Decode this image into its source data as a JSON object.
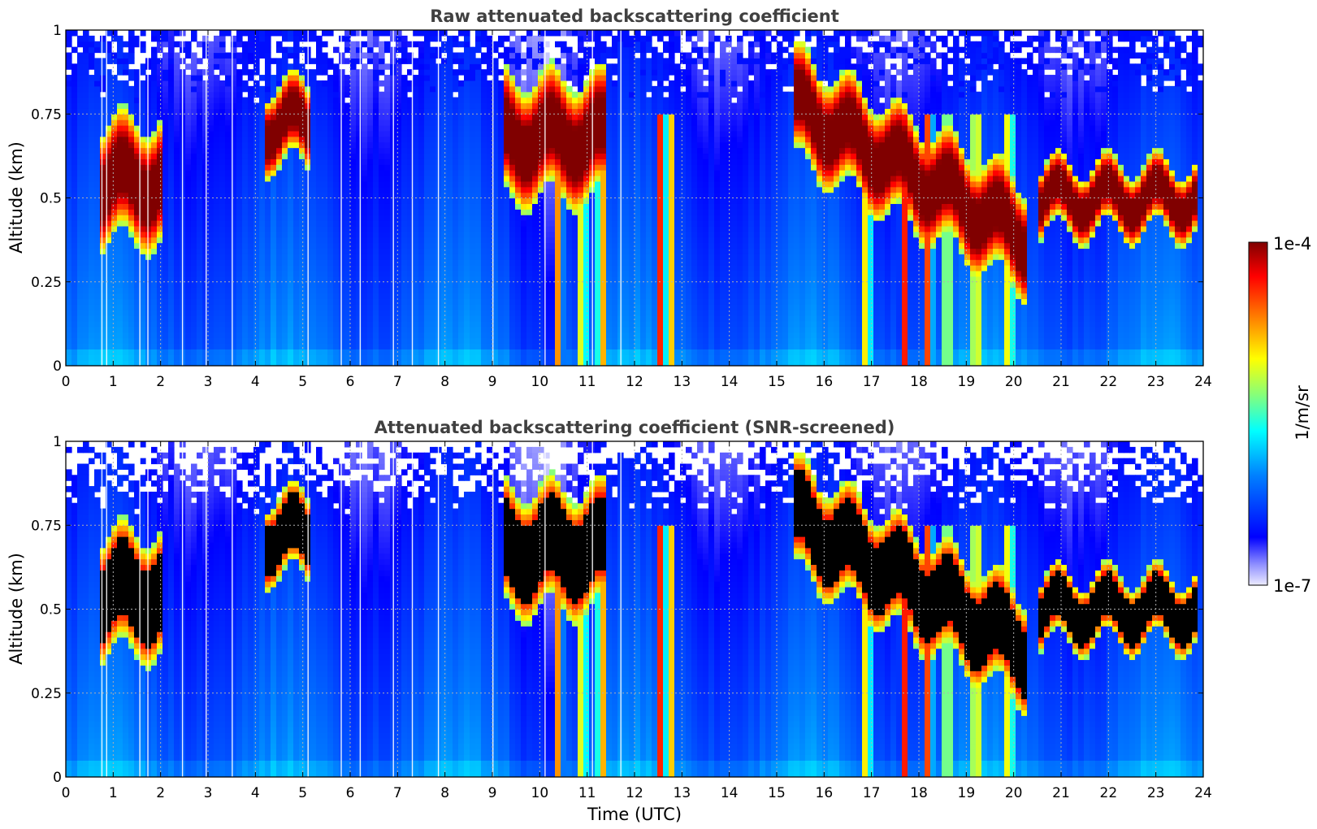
{
  "chart_data": [
    {
      "type": "heatmap",
      "title": "Raw attenuated backscattering coefficient",
      "xlabel": "",
      "ylabel": "Altitude (km)",
      "xlim": [
        0,
        24
      ],
      "ylim": [
        0,
        1
      ],
      "x_ticks": [
        "0",
        "1",
        "2",
        "3",
        "4",
        "5",
        "6",
        "7",
        "8",
        "9",
        "10",
        "11",
        "12",
        "13",
        "14",
        "15",
        "16",
        "17",
        "18",
        "19",
        "20",
        "21",
        "22",
        "23",
        "24"
      ],
      "y_ticks": [
        "0",
        "0.25",
        "0.5",
        "0.75",
        "1"
      ],
      "grid": true,
      "features": {
        "cloud_layers": [
          {
            "t0": 0.7,
            "t1": 2.0,
            "alt": 0.55,
            "thick": 0.18
          },
          {
            "t0": 4.2,
            "t1": 5.2,
            "alt": 0.72,
            "thick": 0.12
          },
          {
            "t0": 9.3,
            "t1": 11.4,
            "alt": 0.68,
            "thick": 0.18
          },
          {
            "t0": 15.3,
            "t1": 20.3,
            "alt": 0.5,
            "thick": 0.16
          },
          {
            "t0": 20.5,
            "t1": 23.9,
            "alt": 0.5,
            "thick": 0.1
          }
        ],
        "precip_columns": [
          10.4,
          10.9,
          11.3,
          12.55,
          12.75,
          16.9,
          17.7,
          18.2,
          18.6,
          19.2,
          19.9
        ],
        "surface_layer_top_km": 0.25
      }
    },
    {
      "type": "heatmap",
      "title": "Attenuated backscattering coefficient (SNR-screened)",
      "xlabel": "Time (UTC)",
      "ylabel": "Altitude (km)",
      "xlim": [
        0,
        24
      ],
      "ylim": [
        0,
        1
      ],
      "x_ticks": [
        "0",
        "1",
        "2",
        "3",
        "4",
        "5",
        "6",
        "7",
        "8",
        "9",
        "10",
        "11",
        "12",
        "13",
        "14",
        "15",
        "16",
        "17",
        "18",
        "19",
        "20",
        "21",
        "22",
        "23",
        "24"
      ],
      "y_ticks": [
        "0",
        "0.25",
        "0.5",
        "0.75",
        "1"
      ],
      "grid": true,
      "screened": true
    }
  ],
  "colorbar": {
    "label": "1/m/sr",
    "max_label": "1e-4",
    "min_label": "1e-7",
    "colormap": "jet",
    "colors": [
      "#ecebff",
      "#9090ff",
      "#0000ff",
      "#0080ff",
      "#00ffff",
      "#80ff80",
      "#ffff00",
      "#ff8000",
      "#ff0000",
      "#800000"
    ]
  }
}
